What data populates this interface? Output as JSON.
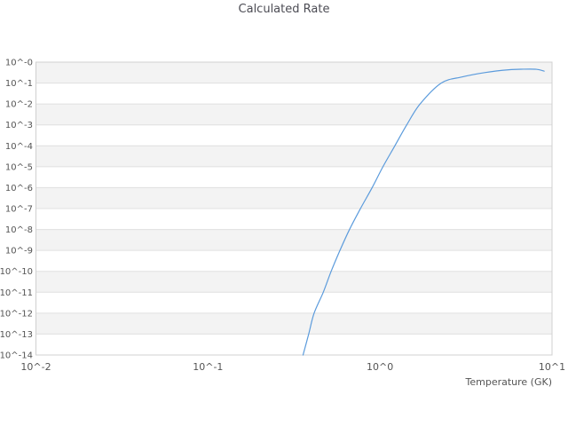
{
  "chart_data": {
    "type": "line",
    "title": "Calculated Rate",
    "xlabel": "Temperature (GK)",
    "ylabel": "",
    "x_scale": "log",
    "y_scale": "log",
    "xlim": [
      0.01,
      10
    ],
    "ylim": [
      1e-14,
      1
    ],
    "x_tick_labels": [
      "10^-2",
      "10^-1",
      "10^0",
      "10^1"
    ],
    "x_tick_values": [
      0.01,
      0.1,
      1,
      10
    ],
    "y_tick_labels": [
      "10^-0",
      "10^-1",
      "10^-2",
      "10^-3",
      "10^-4",
      "10^-5",
      "10^-6",
      "10^-7",
      "10^-8",
      "10^-9",
      "10^-10",
      "10^-11",
      "10^-12",
      "10^-13",
      "10^-14"
    ],
    "y_tick_values": [
      1,
      0.1,
      0.01,
      0.001,
      0.0001,
      1e-05,
      1e-06,
      1e-07,
      1e-08,
      1e-09,
      1e-10,
      1e-11,
      1e-12,
      1e-13,
      1e-14
    ],
    "grid": true,
    "legend_position": "none",
    "colors": {
      "line": "#5b9bdc",
      "band": "#f3f3f3",
      "gridline": "#e0e0e0",
      "border": "#d0d0d0",
      "tick_text": "#545454",
      "title_text": "#4c4c54"
    },
    "series": [
      {
        "name": "Calculated Rate",
        "points": [
          [
            0.357,
            1e-14
          ],
          [
            0.385,
            1e-13
          ],
          [
            0.414,
            1e-12
          ],
          [
            0.468,
            1e-11
          ],
          [
            0.52,
            1e-10
          ],
          [
            0.585,
            1e-09
          ],
          [
            0.665,
            1e-08
          ],
          [
            0.77,
            1e-07
          ],
          [
            0.9,
            1e-06
          ],
          [
            1.04,
            1e-05
          ],
          [
            1.22,
            0.0001
          ],
          [
            1.43,
            0.001
          ],
          [
            1.71,
            0.01
          ],
          [
            2.27,
            0.1
          ],
          [
            3.0,
            0.196
          ],
          [
            4.1,
            0.32
          ],
          [
            5.6,
            0.43
          ],
          [
            6.8,
            0.46
          ],
          [
            8.1,
            0.455
          ],
          [
            9.0,
            0.37
          ]
        ]
      }
    ]
  }
}
